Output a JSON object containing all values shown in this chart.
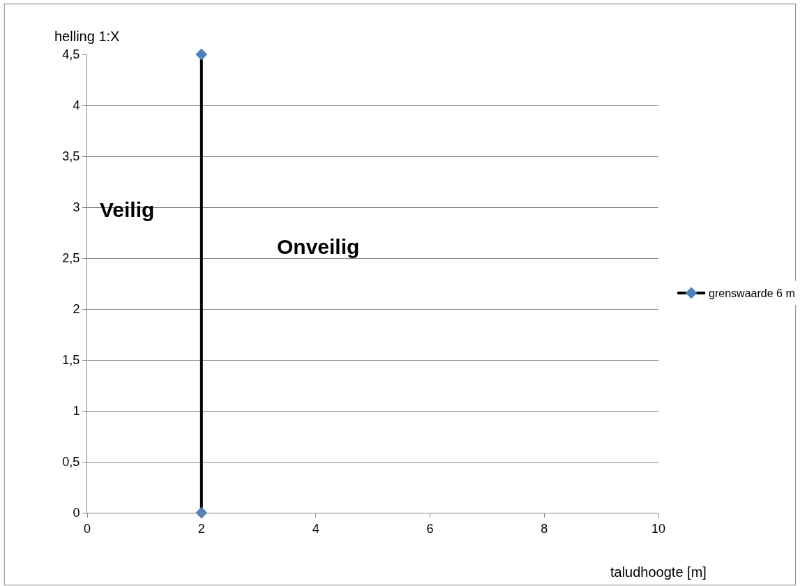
{
  "chart_data": {
    "type": "line",
    "xlabel": "taludhoogte [m]",
    "ylabel": "helling 1:X",
    "series": [
      {
        "name": "grenswaarde 6 m",
        "color": "#000000",
        "colors": [
          "#4f81bd",
          "#4f81bd"
        ],
        "x": [
          2,
          2
        ],
        "values": [
          0,
          4.5
        ]
      }
    ],
    "annotations": [
      "Veilig",
      "Onveilig"
    ],
    "xlim": [
      0,
      10
    ],
    "xticks": [
      0,
      2,
      4,
      6,
      8,
      10
    ],
    "ylim": [
      0,
      4.5
    ],
    "yticks": [
      0,
      {
        "value": 0.5,
        "label": "0,5"
      },
      1,
      {
        "value": 1.5,
        "label": "1,5"
      },
      2,
      {
        "value": 2.5,
        "label": "2,5"
      },
      3,
      {
        "value": 3.5,
        "label": "3,5"
      },
      4,
      {
        "value": 4.5,
        "label": "4,5"
      }
    ],
    "grid": "y",
    "legend": "right",
    "marker": "diamond",
    "line_style": "solid"
  }
}
